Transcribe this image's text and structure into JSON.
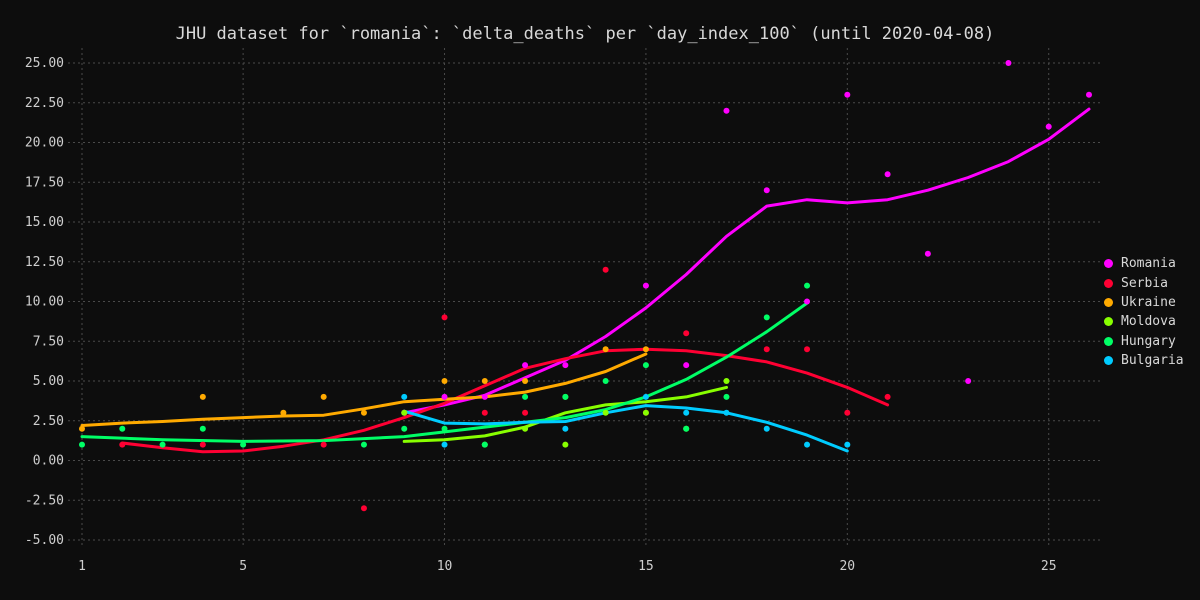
{
  "chart_data": {
    "type": "scatter",
    "title": "JHU dataset for `romania`: `delta_deaths` per `day_index_100` (until 2020-04-08)",
    "xlabel": "",
    "ylabel": "",
    "xlim": [
      1,
      26
    ],
    "ylim": [
      -5,
      25
    ],
    "x_ticks": [
      1,
      5,
      10,
      15,
      20,
      25
    ],
    "y_ticks": [
      -5,
      -2.5,
      0,
      2.5,
      5,
      7.5,
      10,
      12.5,
      15,
      17.5,
      20,
      22.5,
      25
    ],
    "grid": true,
    "legend_position": "right",
    "series": [
      {
        "name": "Romania",
        "color": "#ff00ff",
        "points": [
          [
            9,
            3
          ],
          [
            10,
            4
          ],
          [
            11,
            4
          ],
          [
            12,
            6
          ],
          [
            13,
            6
          ],
          [
            15,
            11
          ],
          [
            16,
            6
          ],
          [
            17,
            22
          ],
          [
            18,
            17
          ],
          [
            19,
            10
          ],
          [
            20,
            23
          ],
          [
            21,
            18
          ],
          [
            22,
            13
          ],
          [
            23,
            5
          ],
          [
            24,
            25
          ],
          [
            25,
            21
          ],
          [
            26,
            23
          ]
        ],
        "trend": [
          [
            9,
            3.0
          ],
          [
            10,
            3.5
          ],
          [
            11,
            4.1
          ],
          [
            12,
            5.2
          ],
          [
            13,
            6.3
          ],
          [
            14,
            7.8
          ],
          [
            15,
            9.6
          ],
          [
            16,
            11.7
          ],
          [
            17,
            14.1
          ],
          [
            18,
            16.0
          ],
          [
            19,
            16.4
          ],
          [
            20,
            16.2
          ],
          [
            21,
            16.4
          ],
          [
            22,
            17.0
          ],
          [
            23,
            17.8
          ],
          [
            24,
            18.8
          ],
          [
            25,
            20.2
          ],
          [
            26,
            22.1
          ]
        ]
      },
      {
        "name": "Serbia",
        "color": "#ff0033",
        "points": [
          [
            2,
            1
          ],
          [
            4,
            1
          ],
          [
            7,
            1
          ],
          [
            8,
            -3
          ],
          [
            10,
            9
          ],
          [
            11,
            3
          ],
          [
            12,
            3
          ],
          [
            14,
            12
          ],
          [
            15,
            3
          ],
          [
            16,
            8
          ],
          [
            18,
            7
          ],
          [
            19,
            7
          ],
          [
            20,
            3
          ],
          [
            21,
            4
          ]
        ],
        "trend": [
          [
            2,
            1.1
          ],
          [
            3,
            0.8
          ],
          [
            4,
            0.55
          ],
          [
            5,
            0.6
          ],
          [
            6,
            0.9
          ],
          [
            7,
            1.3
          ],
          [
            8,
            1.9
          ],
          [
            9,
            2.7
          ],
          [
            10,
            3.6
          ],
          [
            11,
            4.7
          ],
          [
            12,
            5.8
          ],
          [
            13,
            6.4
          ],
          [
            14,
            6.9
          ],
          [
            15,
            7.0
          ],
          [
            16,
            6.9
          ],
          [
            17,
            6.6
          ],
          [
            18,
            6.2
          ],
          [
            19,
            5.5
          ],
          [
            20,
            4.6
          ],
          [
            21,
            3.5
          ]
        ]
      },
      {
        "name": "Ukraine",
        "color": "#ffaa00",
        "points": [
          [
            1,
            2
          ],
          [
            4,
            4
          ],
          [
            6,
            3
          ],
          [
            7,
            4
          ],
          [
            8,
            3
          ],
          [
            10,
            5
          ],
          [
            11,
            5
          ],
          [
            12,
            5
          ],
          [
            14,
            7
          ],
          [
            15,
            7
          ]
        ],
        "trend": [
          [
            1,
            2.2
          ],
          [
            2,
            2.35
          ],
          [
            3,
            2.45
          ],
          [
            4,
            2.6
          ],
          [
            5,
            2.7
          ],
          [
            6,
            2.8
          ],
          [
            7,
            2.85
          ],
          [
            8,
            3.25
          ],
          [
            9,
            3.7
          ],
          [
            10,
            3.85
          ],
          [
            11,
            4.0
          ],
          [
            12,
            4.3
          ],
          [
            13,
            4.85
          ],
          [
            14,
            5.6
          ],
          [
            15,
            6.7
          ]
        ]
      },
      {
        "name": "Moldova",
        "color": "#88ff00",
        "points": [
          [
            9,
            3
          ],
          [
            11,
            1
          ],
          [
            12,
            2
          ],
          [
            13,
            1
          ],
          [
            13,
            4
          ],
          [
            14,
            3
          ],
          [
            15,
            3
          ],
          [
            16,
            2
          ],
          [
            17,
            5
          ]
        ],
        "trend": [
          [
            9,
            1.2
          ],
          [
            10,
            1.3
          ],
          [
            11,
            1.55
          ],
          [
            12,
            2.1
          ],
          [
            13,
            3.0
          ],
          [
            14,
            3.5
          ],
          [
            15,
            3.7
          ],
          [
            16,
            4.0
          ],
          [
            17,
            4.6
          ]
        ]
      },
      {
        "name": "Hungary",
        "color": "#00ff66",
        "points": [
          [
            1,
            1
          ],
          [
            2,
            2
          ],
          [
            3,
            1
          ],
          [
            4,
            2
          ],
          [
            5,
            1
          ],
          [
            8,
            1
          ],
          [
            9,
            2
          ],
          [
            10,
            2
          ],
          [
            11,
            1
          ],
          [
            12,
            4
          ],
          [
            13,
            4
          ],
          [
            14,
            5
          ],
          [
            15,
            6
          ],
          [
            16,
            2
          ],
          [
            17,
            4
          ],
          [
            18,
            9
          ],
          [
            19,
            11
          ]
        ],
        "trend": [
          [
            1,
            1.5
          ],
          [
            3,
            1.3
          ],
          [
            5,
            1.2
          ],
          [
            7,
            1.25
          ],
          [
            9,
            1.5
          ],
          [
            10,
            1.8
          ],
          [
            11,
            2.1
          ],
          [
            12,
            2.4
          ],
          [
            13,
            2.7
          ],
          [
            14,
            3.2
          ],
          [
            15,
            4.0
          ],
          [
            16,
            5.1
          ],
          [
            17,
            6.5
          ],
          [
            18,
            8.1
          ],
          [
            19,
            9.9
          ]
        ]
      },
      {
        "name": "Bulgaria",
        "color": "#00ccff",
        "points": [
          [
            9,
            4
          ],
          [
            10,
            1
          ],
          [
            13,
            2
          ],
          [
            15,
            4
          ],
          [
            16,
            3
          ],
          [
            17,
            3
          ],
          [
            18,
            2
          ],
          [
            19,
            1
          ],
          [
            20,
            1
          ]
        ],
        "trend": [
          [
            9,
            3.1
          ],
          [
            10,
            2.35
          ],
          [
            11,
            2.3
          ],
          [
            12,
            2.4
          ],
          [
            13,
            2.45
          ],
          [
            14,
            3.0
          ],
          [
            15,
            3.45
          ],
          [
            16,
            3.3
          ],
          [
            17,
            3.0
          ],
          [
            18,
            2.4
          ],
          [
            19,
            1.6
          ],
          [
            20,
            0.6
          ]
        ]
      }
    ]
  }
}
